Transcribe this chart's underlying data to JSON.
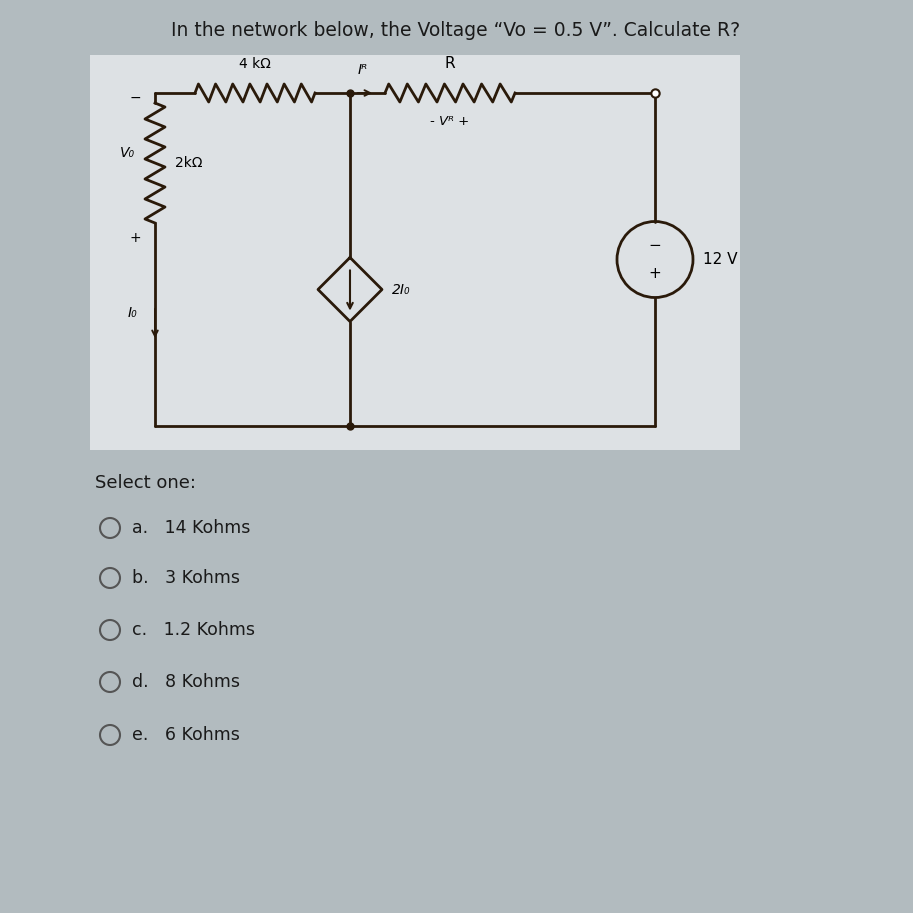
{
  "title": "In the network below, the Voltage “Vo = 0.5 V”. Calculate R?",
  "bg_color": "#b2bbbf",
  "circuit_bg": "#dde1e4",
  "options_label": "Select one:",
  "options": [
    "a.   14 Kohms",
    "b.   3 Kohms",
    "c.   1.2 Kohms",
    "d.   8 Kohms",
    "e.   6 Kohms"
  ],
  "resistor_4k_label": "4 kΩ",
  "resistor_R_label": "R",
  "resistor_2k_label": "2kΩ",
  "current_source_label": "2I₀",
  "voltage_source_label": "12 V",
  "IR_label": "Iᴿ",
  "VR_label": "- Vᴿ +",
  "Vs_label": "V₀",
  "I_label": "I₀",
  "minus_label": "-",
  "plus_label": "+"
}
